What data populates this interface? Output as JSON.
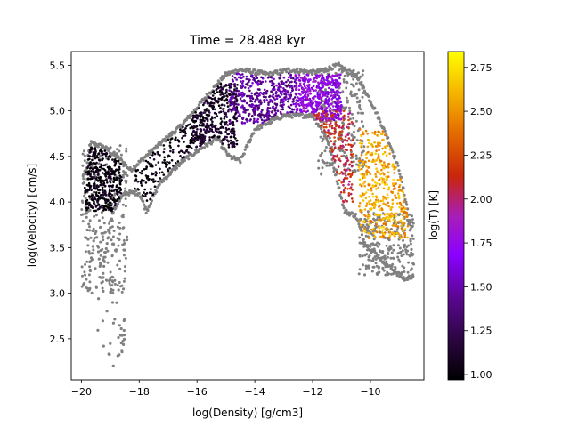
{
  "chart_data": {
    "type": "scatter",
    "title": "Time = 28.488 kyr",
    "xlabel": "log(Density) [g/cm3]",
    "ylabel": "log(Velocity) [cm/s]",
    "xlim": [
      -20.35,
      -8.15
    ],
    "ylim": [
      2.05,
      5.65
    ],
    "x_ticks": [
      -20,
      -18,
      -16,
      -14,
      -12,
      -10
    ],
    "y_ticks": [
      2.5,
      3.0,
      3.5,
      4.0,
      4.5,
      5.0,
      5.5
    ],
    "x_tick_labels": [
      "−20",
      "−18",
      "−16",
      "−14",
      "−12",
      "−10"
    ],
    "y_tick_labels": [
      "2.5",
      "3.0",
      "3.5",
      "4.0",
      "4.5",
      "5.0",
      "5.5"
    ],
    "grid": false,
    "colorbar": {
      "label": "log(T) [K]",
      "colormap": "gnuplot",
      "range": [
        0.97,
        2.84
      ],
      "ticks": [
        1.0,
        1.25,
        1.5,
        1.75,
        2.0,
        2.25,
        2.5,
        2.75
      ],
      "tick_labels": [
        "1.00",
        "1.25",
        "1.50",
        "1.75",
        "2.00",
        "2.25",
        "2.50",
        "2.75"
      ]
    },
    "outline_color": "#808080",
    "regions": [
      {
        "x": [
          -19.9,
          -18.6
        ],
        "y": [
          3.9,
          4.6
        ],
        "logT": 1.0
      },
      {
        "x": [
          -18.2,
          -15.8
        ],
        "y": [
          4.0,
          5.0
        ],
        "logT": 1.0
      },
      {
        "x": [
          -16.2,
          -14.6
        ],
        "y": [
          4.6,
          5.3
        ],
        "logT": 1.1
      },
      {
        "x": [
          -14.9,
          -12.6
        ],
        "y": [
          4.85,
          5.45
        ],
        "logT": 1.45
      },
      {
        "x": [
          -12.6,
          -11.0
        ],
        "y": [
          4.9,
          5.4
        ],
        "logT": 1.7
      },
      {
        "x": [
          -12.5,
          -10.6
        ],
        "y": [
          4.0,
          5.0
        ],
        "logT": 2.1
      },
      {
        "x": [
          -10.4,
          -8.7
        ],
        "y": [
          3.6,
          4.8
        ],
        "logT": 2.55
      }
    ],
    "outline_regions": [
      {
        "x": [
          -20.0,
          -18.4
        ],
        "y": [
          3.0,
          4.65
        ]
      },
      {
        "x": [
          -10.4,
          -8.5
        ],
        "y": [
          3.2,
          3.9
        ]
      },
      {
        "x": [
          -11.8,
          -10.2
        ],
        "y": [
          4.3,
          5.45
        ]
      }
    ],
    "outline_tail": {
      "x": [
        -19.5,
        -18.5
      ],
      "y": [
        2.2,
        3.2
      ]
    },
    "ridge_line": [
      [
        -19.85,
        4.3
      ],
      [
        -19.7,
        4.65
      ],
      [
        -19.2,
        4.6
      ],
      [
        -18.6,
        4.45
      ],
      [
        -18.3,
        4.35
      ],
      [
        -17.6,
        4.55
      ],
      [
        -16.5,
        4.85
      ],
      [
        -15.7,
        5.15
      ],
      [
        -15.0,
        5.4
      ],
      [
        -14.5,
        5.45
      ],
      [
        -13.5,
        5.4
      ],
      [
        -12.8,
        5.45
      ],
      [
        -11.9,
        5.42
      ],
      [
        -11.1,
        5.5
      ],
      [
        -10.4,
        5.35
      ],
      [
        -9.9,
        5.05
      ],
      [
        -9.4,
        4.7
      ],
      [
        -9.0,
        4.35
      ],
      [
        -8.7,
        3.9
      ],
      [
        -8.55,
        3.4
      ],
      [
        -8.5,
        3.2
      ]
    ],
    "lower_line": [
      [
        -19.9,
        4.2
      ],
      [
        -19.7,
        3.3
      ],
      [
        -19.5,
        3.7
      ],
      [
        -19.3,
        3.1
      ],
      [
        -19.1,
        3.6
      ],
      [
        -18.9,
        3.9
      ],
      [
        -18.5,
        4.1
      ],
      [
        -18.0,
        4.1
      ],
      [
        -17.75,
        3.9
      ],
      [
        -17.3,
        4.2
      ],
      [
        -16.5,
        4.45
      ],
      [
        -15.8,
        4.6
      ],
      [
        -15.3,
        4.7
      ],
      [
        -14.9,
        4.5
      ],
      [
        -14.5,
        4.45
      ],
      [
        -14.0,
        4.8
      ],
      [
        -13.0,
        4.95
      ],
      [
        -12.0,
        4.95
      ],
      [
        -11.5,
        4.7
      ],
      [
        -11.2,
        4.3
      ],
      [
        -10.9,
        3.9
      ],
      [
        -10.5,
        3.85
      ],
      [
        -10.2,
        3.55
      ],
      [
        -9.7,
        3.4
      ],
      [
        -9.2,
        3.25
      ],
      [
        -8.8,
        3.15
      ],
      [
        -8.5,
        3.2
      ]
    ]
  }
}
